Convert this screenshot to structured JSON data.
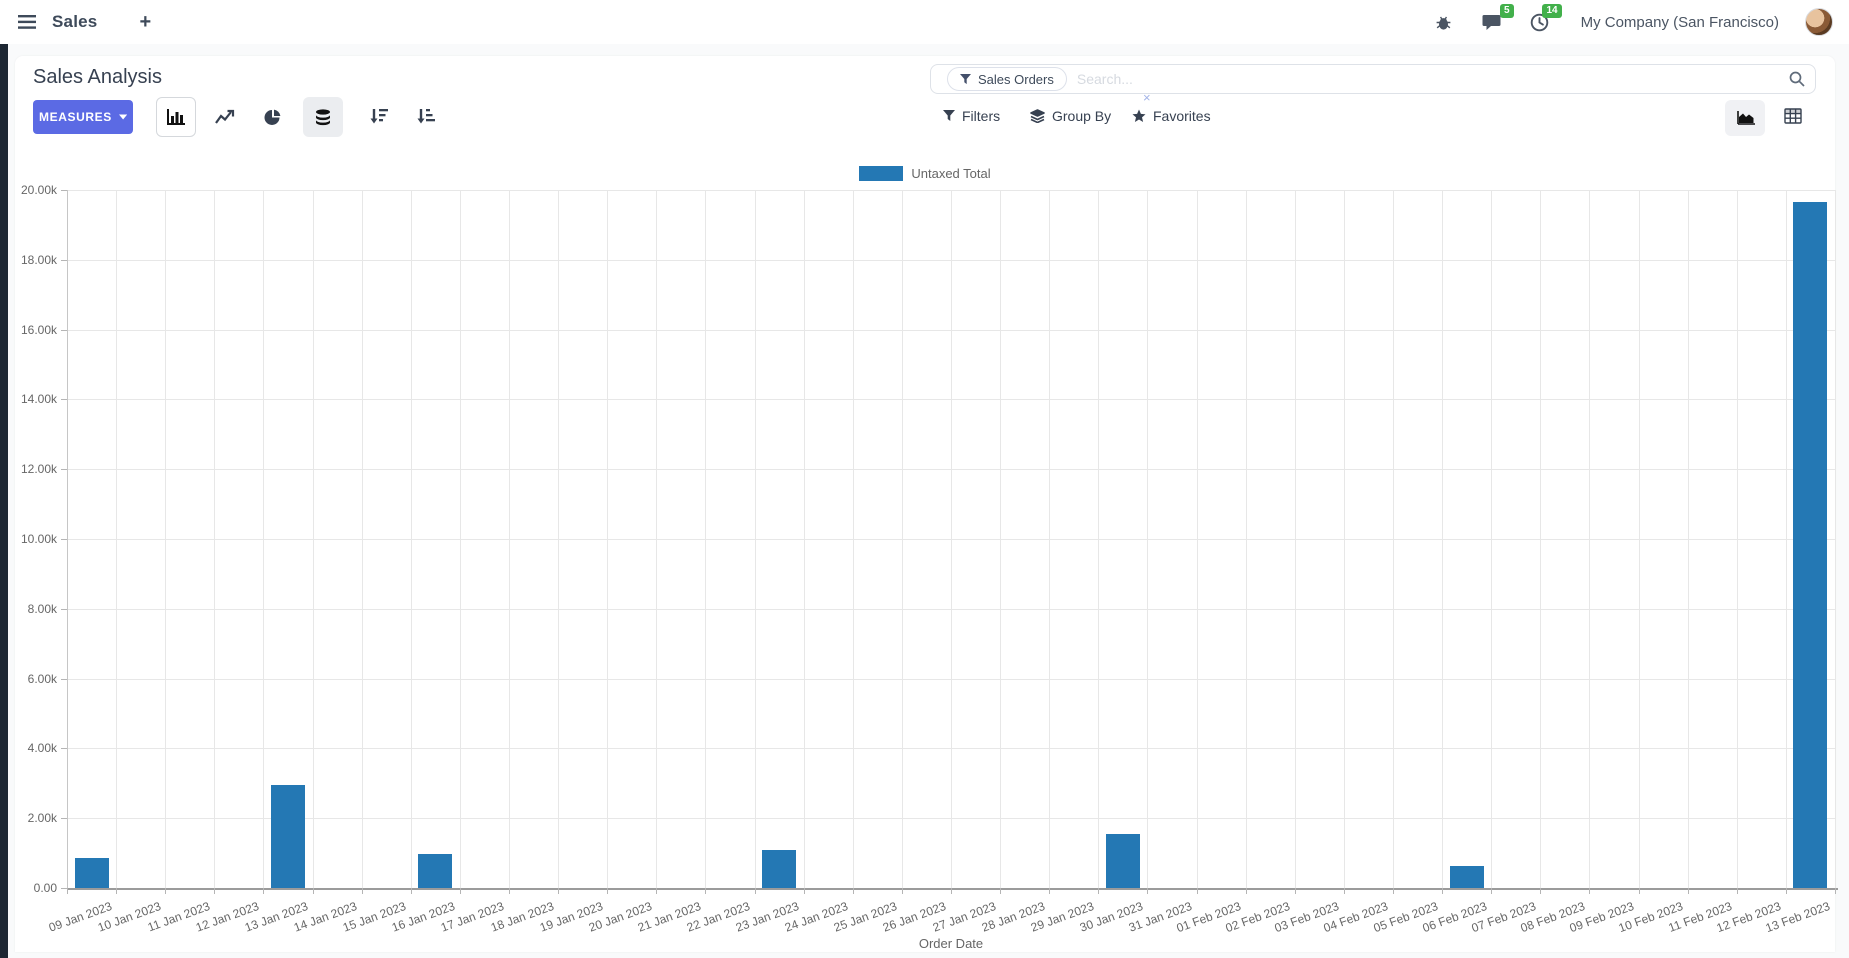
{
  "navbar": {
    "app_name": "Sales",
    "plus": "+",
    "messages_badge": "5",
    "activities_badge": "14",
    "company": "My Company (San Francisco)"
  },
  "control_panel": {
    "title": "Sales Analysis",
    "measures_button": "MEASURES",
    "search": {
      "facet": "Sales Orders",
      "placeholder": "Search...",
      "remove": "×"
    },
    "filters_label": "Filters",
    "group_by_label": "Group By",
    "favorites_label": "Favorites"
  },
  "chart_data": {
    "type": "bar",
    "title": "",
    "xlabel": "Order Date",
    "ylabel": "",
    "ylim": [
      0,
      20000
    ],
    "ystep": 2000,
    "grid": true,
    "legend_position": "top-center",
    "categories": [
      "09 Jan 2023",
      "10 Jan 2023",
      "11 Jan 2023",
      "12 Jan 2023",
      "13 Jan 2023",
      "14 Jan 2023",
      "15 Jan 2023",
      "16 Jan 2023",
      "17 Jan 2023",
      "18 Jan 2023",
      "19 Jan 2023",
      "20 Jan 2023",
      "21 Jan 2023",
      "22 Jan 2023",
      "23 Jan 2023",
      "24 Jan 2023",
      "25 Jan 2023",
      "26 Jan 2023",
      "27 Jan 2023",
      "28 Jan 2023",
      "29 Jan 2023",
      "30 Jan 2023",
      "31 Jan 2023",
      "01 Feb 2023",
      "02 Feb 2023",
      "03 Feb 2023",
      "04 Feb 2023",
      "05 Feb 2023",
      "06 Feb 2023",
      "07 Feb 2023",
      "08 Feb 2023",
      "09 Feb 2023",
      "10 Feb 2023",
      "11 Feb 2023",
      "12 Feb 2023",
      "13 Feb 2023"
    ],
    "series": [
      {
        "name": "Untaxed Total",
        "values": [
          850,
          0,
          0,
          0,
          2950,
          0,
          0,
          970,
          0,
          0,
          0,
          0,
          0,
          0,
          1100,
          0,
          0,
          0,
          0,
          0,
          0,
          1550,
          0,
          0,
          0,
          0,
          0,
          0,
          630,
          0,
          0,
          0,
          0,
          0,
          0,
          19650
        ]
      }
    ]
  },
  "colors": {
    "accent": "#5b6ae4",
    "bar_blue": "#2478b4",
    "badge_green": "#42b04b",
    "nav_text": "#3e4a5a"
  }
}
